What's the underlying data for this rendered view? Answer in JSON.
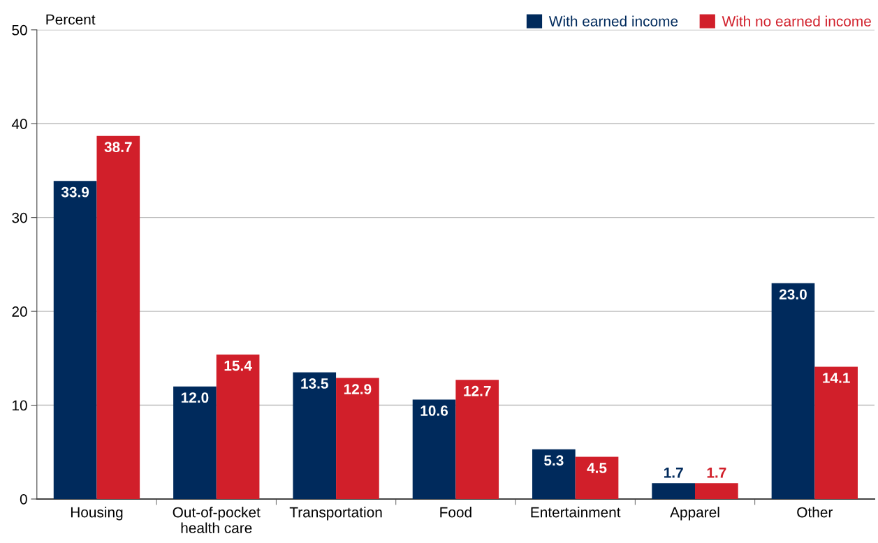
{
  "chart_data": {
    "type": "bar",
    "ylabel": "Percent",
    "categories": [
      "Housing",
      "Out-of-pocket\nhealth care",
      "Transportation",
      "Food",
      "Entertainment",
      "Apparel",
      "Other"
    ],
    "series": [
      {
        "name": "With earned income",
        "color": "#002a5c",
        "values": [
          33.9,
          12.0,
          13.5,
          10.6,
          5.3,
          1.7,
          23.0
        ],
        "value_labels": [
          "33.9",
          "12.0",
          "13.5",
          "10.6",
          "5.3",
          "1.7",
          "23.0"
        ]
      },
      {
        "name": "With no earned income",
        "color": "#d11f2a",
        "values": [
          38.7,
          15.4,
          12.9,
          12.7,
          4.5,
          1.7,
          14.1
        ],
        "value_labels": [
          "38.7",
          "15.4",
          "12.9",
          "12.7",
          "4.5",
          "1.7",
          "14.1"
        ]
      }
    ],
    "ylim": [
      0,
      50
    ],
    "yticks": [
      0,
      10,
      20,
      30,
      40,
      50
    ],
    "grid": "y",
    "legend": "top right"
  }
}
